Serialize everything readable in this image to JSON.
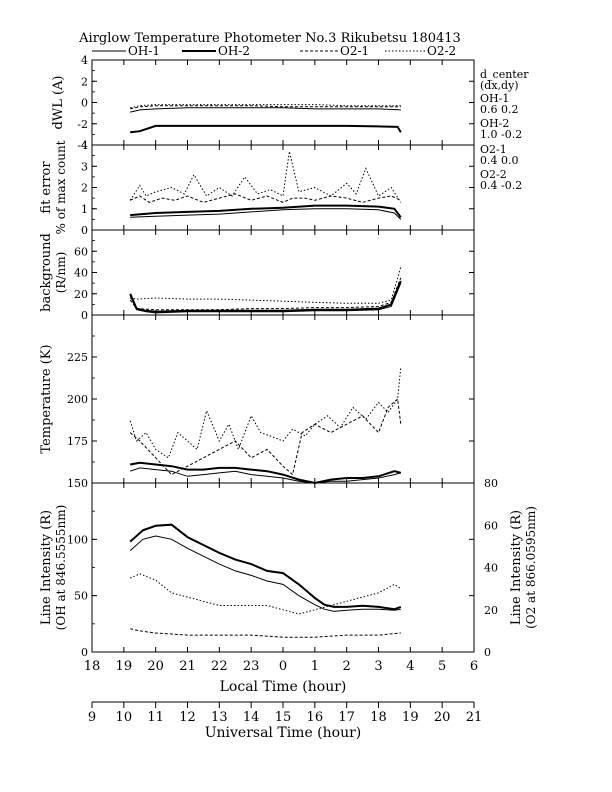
{
  "title": "Airglow Temperature Photometer No.3  Rikubetsu    180413",
  "legend": [
    {
      "name": "OH-1",
      "style": "solid-thin"
    },
    {
      "name": "OH-2",
      "style": "solid-thick"
    },
    {
      "name": "O2-1",
      "style": "dash"
    },
    {
      "name": "O2-2",
      "style": "dot"
    }
  ],
  "side_info": {
    "header": "d_center",
    "subheader": "(dx,dy)",
    "entries": [
      {
        "label": "OH-1",
        "value": "0.6   0.2"
      },
      {
        "label": "OH-2",
        "value": "1.0  -0.2"
      },
      {
        "label": "O2-1",
        "value": "0.4   0.0"
      },
      {
        "label": "O2-2",
        "value": "0.4  -0.2"
      }
    ]
  },
  "chart_data": {
    "type": "line",
    "x_local": {
      "label": "Local Time (hour)",
      "ticks": [
        "18",
        "19",
        "20",
        "21",
        "22",
        "23",
        "0",
        "1",
        "2",
        "3",
        "4",
        "5",
        "6"
      ]
    },
    "x_universal": {
      "label": "Universal Time (hour)",
      "ticks": [
        "9",
        "10",
        "11",
        "12",
        "13",
        "14",
        "15",
        "16",
        "17",
        "18",
        "19",
        "20",
        "21"
      ]
    },
    "panels": [
      {
        "id": "dwl",
        "ylabel": "dWL (A)",
        "ylim": [
          -4,
          4
        ],
        "yticks": [
          "-4",
          "-2",
          "0",
          "2",
          "4"
        ],
        "series": [
          {
            "name": "OH-1",
            "x": [
              19.2,
              19.5,
              20.0,
              21.0,
              22.0,
              23.0,
              24.0,
              25.0,
              26.0,
              27.0,
              27.7
            ],
            "y": [
              -0.9,
              -0.7,
              -0.6,
              -0.5,
              -0.5,
              -0.5,
              -0.5,
              -0.6,
              -0.6,
              -0.6,
              -0.7
            ]
          },
          {
            "name": "OH-2",
            "x": [
              19.2,
              19.5,
              19.8,
              20.0,
              21.0,
              22.0,
              23.0,
              24.0,
              25.0,
              26.0,
              27.0,
              27.6,
              27.7
            ],
            "y": [
              -2.8,
              -2.7,
              -2.4,
              -2.2,
              -2.2,
              -2.2,
              -2.2,
              -2.2,
              -2.2,
              -2.2,
              -2.25,
              -2.3,
              -2.8
            ]
          },
          {
            "name": "O2-1",
            "x": [
              19.2,
              19.5,
              20.0,
              21.0,
              22.0,
              23.0,
              24.0,
              25.0,
              26.0,
              27.0,
              27.7
            ],
            "y": [
              -0.6,
              -0.4,
              -0.3,
              -0.3,
              -0.3,
              -0.3,
              -0.4,
              -0.4,
              -0.4,
              -0.4,
              -0.4
            ]
          },
          {
            "name": "O2-2",
            "x": [
              19.2,
              19.5,
              20.0,
              21.0,
              22.0,
              23.0,
              24.0,
              25.0,
              26.0,
              27.0,
              27.7
            ],
            "y": [
              -0.5,
              -0.3,
              -0.2,
              -0.2,
              -0.2,
              -0.2,
              -0.2,
              -0.2,
              -0.3,
              -0.3,
              -0.3
            ]
          }
        ]
      },
      {
        "id": "fit",
        "ylabel": "fit error",
        "ylabel2": "% of max count",
        "ylim": [
          0,
          4
        ],
        "yticks": [
          "0",
          "1",
          "2",
          "3",
          "4"
        ],
        "series": [
          {
            "name": "OH-1",
            "x": [
              19.2,
              20.0,
              21.0,
              22.0,
              23.0,
              24.0,
              25.0,
              26.0,
              27.0,
              27.5,
              27.7
            ],
            "y": [
              0.6,
              0.65,
              0.7,
              0.75,
              0.85,
              0.95,
              1.0,
              1.0,
              0.95,
              0.8,
              0.5
            ]
          },
          {
            "name": "OH-2",
            "x": [
              19.2,
              20.0,
              21.0,
              22.0,
              23.0,
              24.0,
              25.0,
              26.0,
              27.0,
              27.5,
              27.7
            ],
            "y": [
              0.7,
              0.8,
              0.85,
              0.9,
              1.0,
              1.05,
              1.15,
              1.15,
              1.1,
              1.0,
              0.6
            ]
          },
          {
            "name": "O2-1",
            "x": [
              19.2,
              19.5,
              19.8,
              20.2,
              20.6,
              21.0,
              21.5,
              22.0,
              22.5,
              23.0,
              23.5,
              24.0,
              24.3,
              24.7,
              25.0,
              25.5,
              26.0,
              26.5,
              27.0,
              27.4,
              27.7
            ],
            "y": [
              1.4,
              1.6,
              1.3,
              1.5,
              1.4,
              1.6,
              1.3,
              1.5,
              1.7,
              1.4,
              1.6,
              1.3,
              1.5,
              1.5,
              1.4,
              1.6,
              1.5,
              1.3,
              1.5,
              1.6,
              1.4
            ]
          },
          {
            "name": "O2-2",
            "x": [
              19.2,
              19.5,
              19.7,
              20.0,
              20.5,
              20.9,
              21.2,
              21.6,
              22.0,
              22.4,
              22.8,
              23.2,
              23.6,
              24.0,
              24.2,
              24.5,
              25.0,
              25.5,
              26.0,
              26.3,
              26.6,
              27.0,
              27.4,
              27.7
            ],
            "y": [
              1.4,
              2.1,
              1.6,
              1.8,
              2.0,
              1.7,
              2.6,
              1.6,
              2.0,
              1.6,
              2.5,
              1.7,
              1.9,
              1.6,
              3.7,
              1.8,
              2.0,
              1.6,
              2.2,
              1.7,
              2.9,
              1.6,
              2.0,
              1.3
            ]
          }
        ]
      },
      {
        "id": "bg",
        "ylabel": "background",
        "ylabel2": "(R/nm)",
        "ylim": [
          0,
          80
        ],
        "yticks": [
          "0",
          "20",
          "40",
          "60"
        ],
        "series": [
          {
            "name": "OH-1",
            "x": [
              19.2,
              19.4,
              19.7,
              20.0,
              21.0,
              22.0,
              23.0,
              24.0,
              25.0,
              26.0,
              27.0,
              27.4,
              27.7
            ],
            "y": [
              18,
              5,
              3,
              2,
              3,
              3,
              3,
              3,
              4,
              4,
              5,
              8,
              30
            ]
          },
          {
            "name": "OH-2",
            "x": [
              19.2,
              19.4,
              19.7,
              20.0,
              21.0,
              22.0,
              23.0,
              24.0,
              25.0,
              26.0,
              27.0,
              27.4,
              27.7
            ],
            "y": [
              20,
              6,
              4,
              3,
              4,
              4,
              4,
              4,
              5,
              5,
              6,
              10,
              32
            ]
          },
          {
            "name": "O2-1",
            "x": [
              19.2,
              19.4,
              20.0,
              21.0,
              22.0,
              23.0,
              24.0,
              25.0,
              26.0,
              27.0,
              27.4,
              27.7
            ],
            "y": [
              14,
              6,
              5,
              5,
              5,
              6,
              6,
              7,
              7,
              8,
              12,
              35
            ]
          },
          {
            "name": "O2-2",
            "x": [
              19.2,
              19.4,
              20.0,
              21.0,
              22.0,
              23.0,
              24.0,
              25.0,
              26.0,
              27.0,
              27.4,
              27.7
            ],
            "y": [
              16,
              15,
              16,
              15,
              15,
              14,
              13,
              12,
              11,
              11,
              14,
              45
            ]
          }
        ]
      },
      {
        "id": "temp",
        "ylabel": "Temperature (K)",
        "ylim": [
          150,
          250
        ],
        "yticks": [
          "150",
          "175",
          "200",
          "225"
        ],
        "series": [
          {
            "name": "OH-1",
            "x": [
              19.2,
              19.5,
              20.0,
              20.5,
              21.0,
              21.5,
              22.0,
              22.5,
              23.0,
              23.5,
              24.0,
              24.5,
              25.0,
              25.5,
              26.0,
              26.5,
              27.0,
              27.5,
              27.7
            ],
            "y": [
              157,
              159,
              158,
              157,
              154,
              155,
              156,
              157,
              155,
              154,
              153,
              151,
              150,
              151,
              151,
              152,
              153,
              155,
              156
            ]
          },
          {
            "name": "OH-2",
            "x": [
              19.2,
              19.5,
              20.0,
              20.5,
              21.0,
              21.5,
              22.0,
              22.5,
              23.0,
              23.5,
              24.0,
              24.5,
              25.0,
              25.5,
              26.0,
              26.5,
              27.0,
              27.5,
              27.7
            ],
            "y": [
              161,
              162,
              161,
              160,
              158,
              158,
              159,
              159,
              158,
              157,
              155,
              152,
              150,
              152,
              153,
              153,
              154,
              157,
              156
            ]
          },
          {
            "name": "O2-1",
            "x": [
              19.2,
              19.5,
              20.0,
              20.5,
              21.0,
              21.5,
              22.0,
              22.5,
              23.0,
              23.5,
              24.0,
              24.3,
              24.6,
              25.0,
              25.5,
              26.0,
              26.5,
              27.0,
              27.3,
              27.6,
              27.7
            ],
            "y": [
              180,
              175,
              165,
              155,
              160,
              165,
              170,
              175,
              165,
              170,
              160,
              155,
              180,
              185,
              180,
              185,
              190,
              180,
              195,
              200,
              185
            ]
          },
          {
            "name": "O2-2",
            "x": [
              19.2,
              19.4,
              19.7,
              20.0,
              20.4,
              20.7,
              21.0,
              21.3,
              21.6,
              22.0,
              22.3,
              22.6,
              23.0,
              23.3,
              23.6,
              24.0,
              24.3,
              24.7,
              25.0,
              25.4,
              25.8,
              26.2,
              26.6,
              27.0,
              27.3,
              27.6,
              27.7
            ],
            "y": [
              187,
              175,
              180,
              170,
              165,
              180,
              175,
              170,
              193,
              175,
              185,
              170,
              190,
              180,
              178,
              175,
              182,
              178,
              185,
              190,
              183,
              195,
              188,
              198,
              192,
              200,
              219
            ]
          }
        ]
      },
      {
        "id": "intensity",
        "ylabel": "Line Intensity (R)",
        "ylabel2": "(OH at 846.5555nm)",
        "ylim": [
          0,
          150
        ],
        "yticks": [
          "0",
          "50",
          "100"
        ],
        "y2label": "Line Intensity (R)",
        "y2label2": "(O2 at 866.0595nm)",
        "y2lim": [
          0,
          80
        ],
        "y2ticks": [
          "0",
          "20",
          "40",
          "60",
          "80"
        ],
        "series": [
          {
            "name": "OH-1",
            "axis": "left",
            "x": [
              19.2,
              19.6,
              20.0,
              20.5,
              21.0,
              21.5,
              22.0,
              22.5,
              23.0,
              23.5,
              24.0,
              24.5,
              25.0,
              25.3,
              25.6,
              26.0,
              26.5,
              27.0,
              27.5,
              27.7
            ],
            "y": [
              90,
              100,
              103,
              100,
              92,
              85,
              78,
              72,
              68,
              63,
              60,
              50,
              42,
              38,
              36,
              37,
              38,
              38,
              37,
              38
            ]
          },
          {
            "name": "OH-2",
            "axis": "left",
            "x": [
              19.2,
              19.6,
              20.0,
              20.5,
              21.0,
              21.5,
              22.0,
              22.5,
              23.0,
              23.5,
              24.0,
              24.5,
              25.0,
              25.3,
              25.6,
              26.0,
              26.5,
              27.0,
              27.5,
              27.7
            ],
            "y": [
              98,
              108,
              112,
              113,
              102,
              95,
              88,
              82,
              78,
              72,
              70,
              60,
              48,
              42,
              40,
              40,
              41,
              40,
              38,
              40
            ]
          },
          {
            "name": "O2-1",
            "axis": "right",
            "x": [
              19.2,
              19.5,
              20.0,
              21.0,
              22.0,
              23.0,
              24.0,
              25.0,
              26.0,
              27.0,
              27.7
            ],
            "y": [
              11,
              10,
              9,
              8,
              8,
              8,
              7,
              7,
              8,
              8,
              9
            ]
          },
          {
            "name": "O2-2",
            "axis": "right",
            "x": [
              19.2,
              19.5,
              20.0,
              20.5,
              21.0,
              21.5,
              22.0,
              22.5,
              23.0,
              23.5,
              24.0,
              24.5,
              25.0,
              25.5,
              26.0,
              26.5,
              27.0,
              27.5,
              27.7
            ],
            "y": [
              35,
              37,
              34,
              28,
              26,
              24,
              22,
              22,
              22,
              22,
              20,
              18,
              20,
              22,
              24,
              26,
              28,
              32,
              30
            ]
          }
        ]
      }
    ]
  }
}
